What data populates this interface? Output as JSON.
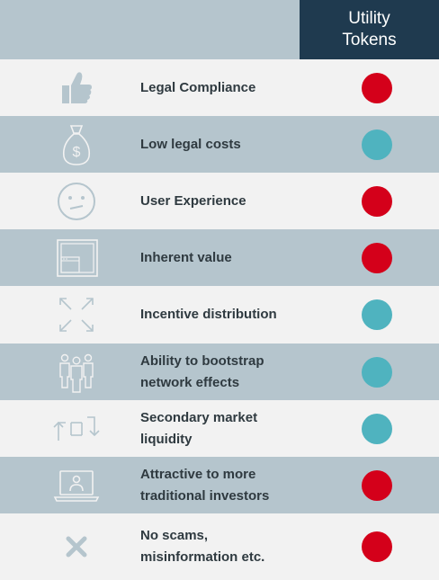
{
  "header": {
    "column_title_line1": "Utility",
    "column_title_line2": "Tokens"
  },
  "colors": {
    "red": "#d4001a",
    "teal": "#4fb3bf",
    "header_dark": "#1f3a4f",
    "row_dark": "#b5c5cd",
    "row_light": "#f2f2f2"
  },
  "rows": [
    {
      "label": "Legal Compliance",
      "icon": "thumbs-up-icon",
      "status": "red"
    },
    {
      "label": "Low legal costs",
      "icon": "money-bag-icon",
      "status": "teal"
    },
    {
      "label": "User Experience",
      "icon": "confused-face-icon",
      "status": "red"
    },
    {
      "label": "Inherent value",
      "icon": "browser-window-icon",
      "status": "red"
    },
    {
      "label": "Incentive distribution",
      "icon": "expand-arrows-icon",
      "status": "teal"
    },
    {
      "label_line1": "Ability to bootstrap",
      "label_line2": "network effects",
      "icon": "group-people-icon",
      "status": "teal"
    },
    {
      "label_line1": "Secondary market",
      "label_line2": "liquidity",
      "icon": "exchange-arrows-icon",
      "status": "teal"
    },
    {
      "label_line1": "Attractive to more",
      "label_line2": "traditional investors",
      "icon": "laptop-user-icon",
      "status": "red"
    },
    {
      "label_line1": "No scams,",
      "label_line2": "misinformation etc.",
      "icon": "cross-icon",
      "status": "red"
    }
  ]
}
